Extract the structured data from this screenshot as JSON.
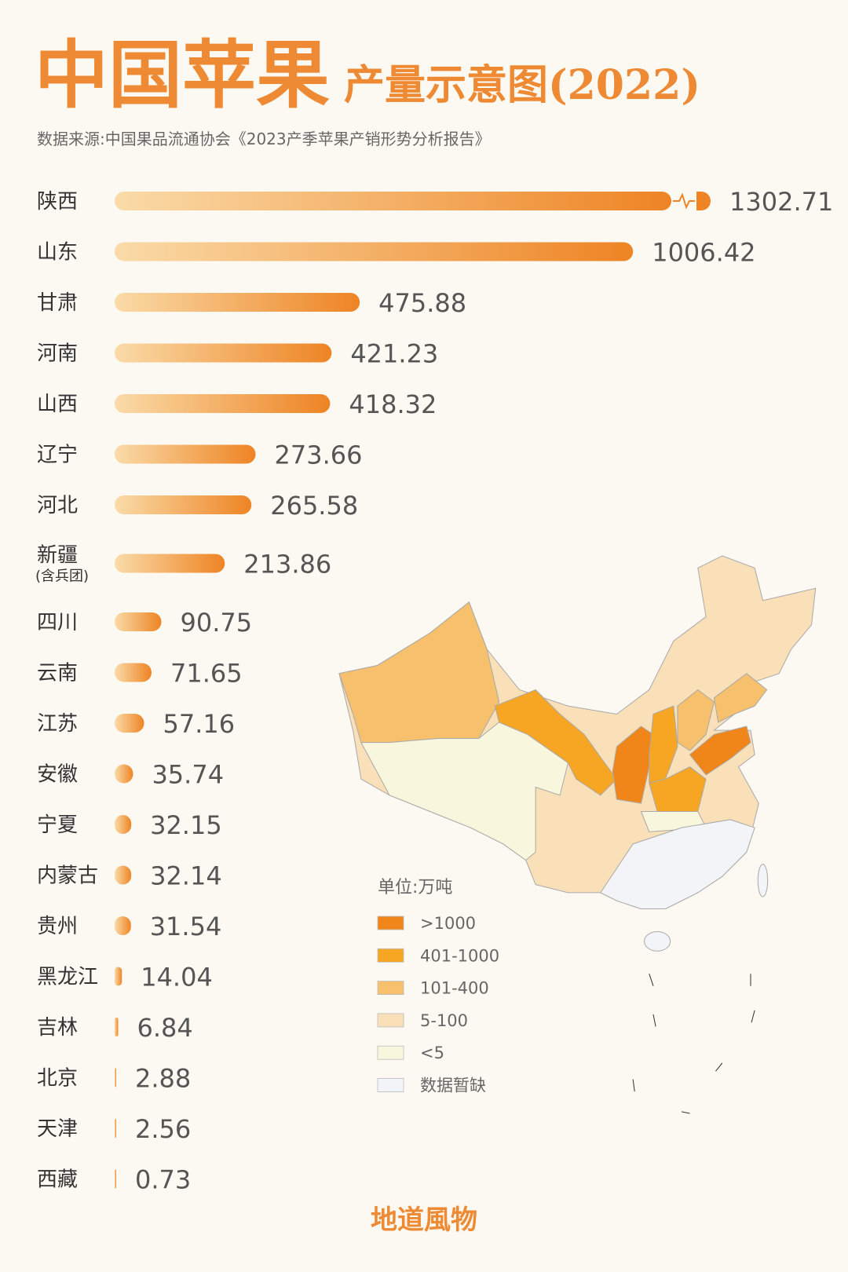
{
  "chart_data": {
    "type": "bar",
    "title": "中国苹果",
    "title_suffix": "产量示意图(2022)",
    "subtitle": "数据来源:中国果品流通协会《2023产季苹果产销形势分析报告》",
    "categories": [
      "陕西",
      "山东",
      "甘肃",
      "河南",
      "山西",
      "辽宁",
      "河北",
      "新疆",
      "四川",
      "云南",
      "江苏",
      "安徽",
      "宁夏",
      "内蒙古",
      "贵州",
      "黑龙江",
      "吉林",
      "北京",
      "天津",
      "西藏"
    ],
    "category_notes": [
      null,
      null,
      null,
      null,
      null,
      null,
      null,
      "(含兵团)",
      null,
      null,
      null,
      null,
      null,
      null,
      null,
      null,
      null,
      null,
      null,
      null
    ],
    "values": [
      1302.71,
      1006.42,
      475.88,
      421.23,
      418.32,
      273.66,
      265.58,
      213.86,
      90.75,
      71.65,
      57.16,
      35.74,
      32.15,
      32.14,
      31.54,
      14.04,
      6.84,
      2.88,
      2.56,
      0.73
    ],
    "colors": [
      "#fadba8",
      "#ee8424"
    ],
    "legend": {
      "title": "单位:万吨",
      "items": [
        {
          "label": ">1000",
          "color": "#f08519"
        },
        {
          "label": "401-1000",
          "color": "#f6a623"
        },
        {
          "label": "101-400",
          "color": "#f6c06c"
        },
        {
          "label": "5-100",
          "color": "#f9e0b8"
        },
        {
          "label": "<5",
          "color": "#f8f6dc"
        },
        {
          "label": "数据暂缺",
          "color": "#f3f4f8"
        }
      ]
    },
    "footer": "地道風物"
  }
}
